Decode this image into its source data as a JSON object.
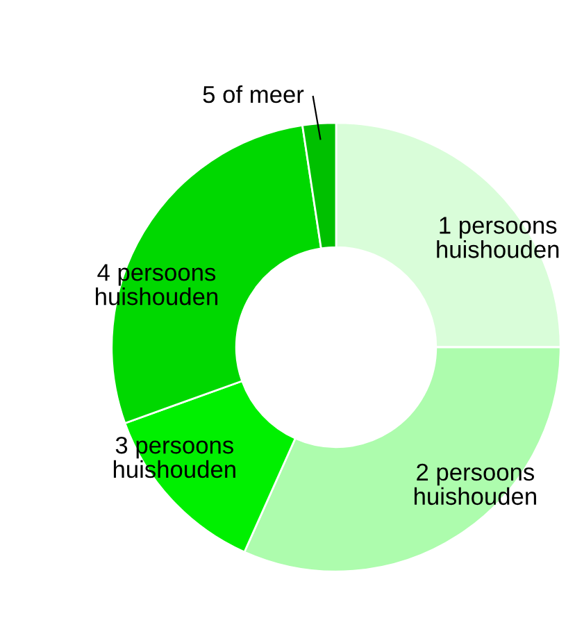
{
  "chart_data": {
    "type": "donut",
    "categories": [
      "1 persoons\nhuishouden",
      "2 persoons\nhuishouden",
      "3 persoons\nhuishouden",
      "4 persoons\nhuishouden",
      "5 of meer"
    ],
    "values": [
      25,
      31.7,
      12.8,
      28.1,
      2.4
    ],
    "colors": [
      "#d9fdd9",
      "#adfcad",
      "#00f000",
      "#00d800",
      "#00c000"
    ],
    "legend": false
  }
}
